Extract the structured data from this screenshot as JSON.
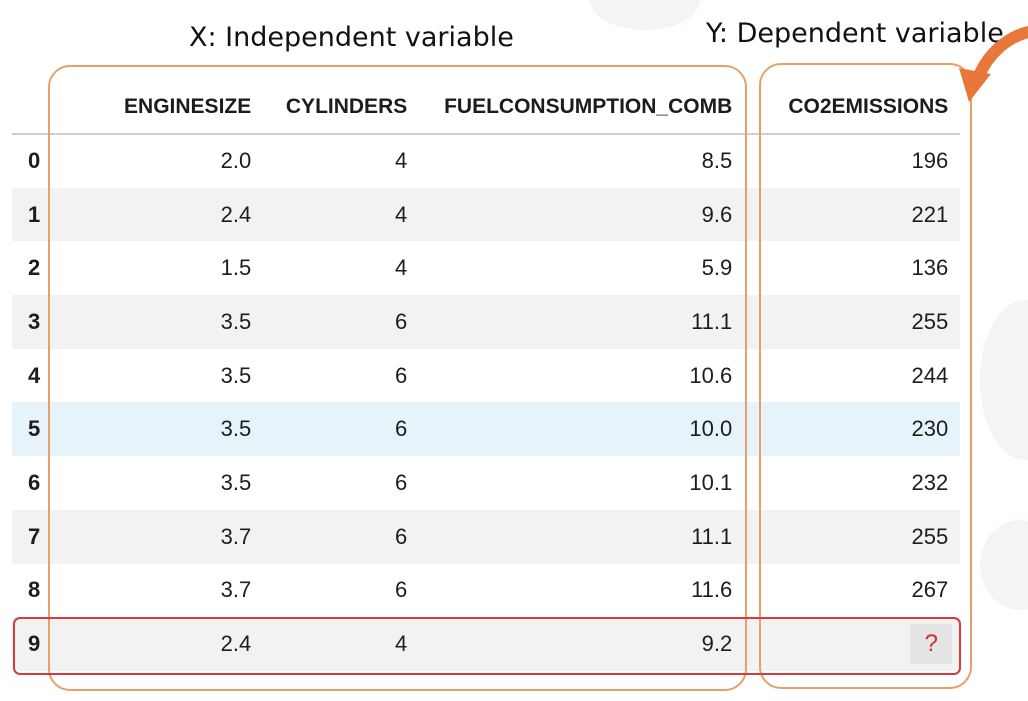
{
  "annotations": {
    "x_label": "X: Independent variable",
    "y_label": "Y: Dependent variable"
  },
  "colors": {
    "box_outline": "#e8a06a",
    "row_outline": "#d63b3b",
    "arrow": "#e8773a",
    "question_mark": "#d2302a",
    "highlight_row": "#e6f3fa"
  },
  "icons": {
    "arrow": "curved-arrow-icon"
  },
  "table": {
    "columns": [
      "",
      "ENGINESIZE",
      "CYLINDERS",
      "FUELCONSUMPTION_COMB",
      "CO2EMISSIONS"
    ],
    "rows": [
      {
        "index": "0",
        "enginesize": "2.0",
        "cylinders": "4",
        "fuel": "8.5",
        "co2": "196"
      },
      {
        "index": "1",
        "enginesize": "2.4",
        "cylinders": "4",
        "fuel": "9.6",
        "co2": "221"
      },
      {
        "index": "2",
        "enginesize": "1.5",
        "cylinders": "4",
        "fuel": "5.9",
        "co2": "136"
      },
      {
        "index": "3",
        "enginesize": "3.5",
        "cylinders": "6",
        "fuel": "11.1",
        "co2": "255"
      },
      {
        "index": "4",
        "enginesize": "3.5",
        "cylinders": "6",
        "fuel": "10.6",
        "co2": "244"
      },
      {
        "index": "5",
        "enginesize": "3.5",
        "cylinders": "6",
        "fuel": "10.0",
        "co2": "230"
      },
      {
        "index": "6",
        "enginesize": "3.5",
        "cylinders": "6",
        "fuel": "10.1",
        "co2": "232"
      },
      {
        "index": "7",
        "enginesize": "3.7",
        "cylinders": "6",
        "fuel": "11.1",
        "co2": "255"
      },
      {
        "index": "8",
        "enginesize": "3.7",
        "cylinders": "6",
        "fuel": "11.6",
        "co2": "267"
      },
      {
        "index": "9",
        "enginesize": "2.4",
        "cylinders": "4",
        "fuel": "9.2",
        "co2": "?"
      }
    ],
    "highlighted_row": 5,
    "unknown_row": 9
  }
}
